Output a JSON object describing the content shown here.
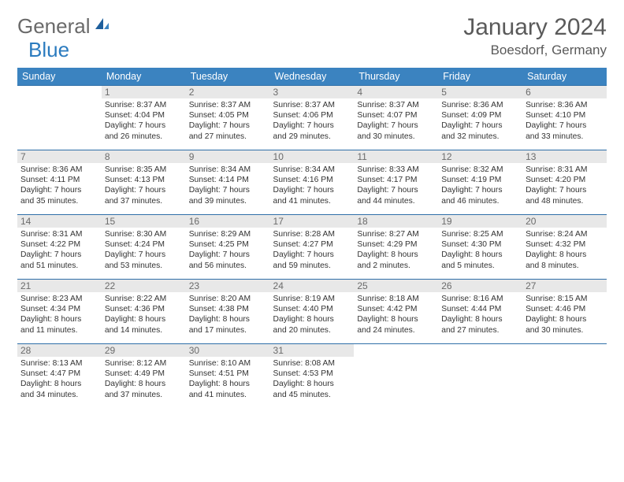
{
  "brand": {
    "part1": "General",
    "part2": "Blue"
  },
  "title": {
    "month": "January 2024",
    "location": "Boesdorf, Germany"
  },
  "colors": {
    "header_bg": "#3b83c0",
    "header_fg": "#ffffff",
    "daynum_bg": "#e8e8e8",
    "daynum_fg": "#6b6b6b",
    "row_border": "#2f6fa8",
    "text": "#333",
    "title_color": "#5a5a5a",
    "logo_gray": "#6a6a6a",
    "logo_blue": "#2b7bbf"
  },
  "layout": {
    "font_title": 30,
    "font_loc": 17,
    "font_head": 12.5,
    "font_daynum": 12,
    "font_body": 10.3
  },
  "weekdays": [
    "Sunday",
    "Monday",
    "Tuesday",
    "Wednesday",
    "Thursday",
    "Friday",
    "Saturday"
  ],
  "weeks": [
    [
      {
        "n": "",
        "l": [
          "",
          "",
          "",
          ""
        ]
      },
      {
        "n": "1",
        "l": [
          "Sunrise: 8:37 AM",
          "Sunset: 4:04 PM",
          "Daylight: 7 hours",
          "and 26 minutes."
        ]
      },
      {
        "n": "2",
        "l": [
          "Sunrise: 8:37 AM",
          "Sunset: 4:05 PM",
          "Daylight: 7 hours",
          "and 27 minutes."
        ]
      },
      {
        "n": "3",
        "l": [
          "Sunrise: 8:37 AM",
          "Sunset: 4:06 PM",
          "Daylight: 7 hours",
          "and 29 minutes."
        ]
      },
      {
        "n": "4",
        "l": [
          "Sunrise: 8:37 AM",
          "Sunset: 4:07 PM",
          "Daylight: 7 hours",
          "and 30 minutes."
        ]
      },
      {
        "n": "5",
        "l": [
          "Sunrise: 8:36 AM",
          "Sunset: 4:09 PM",
          "Daylight: 7 hours",
          "and 32 minutes."
        ]
      },
      {
        "n": "6",
        "l": [
          "Sunrise: 8:36 AM",
          "Sunset: 4:10 PM",
          "Daylight: 7 hours",
          "and 33 minutes."
        ]
      }
    ],
    [
      {
        "n": "7",
        "l": [
          "Sunrise: 8:36 AM",
          "Sunset: 4:11 PM",
          "Daylight: 7 hours",
          "and 35 minutes."
        ]
      },
      {
        "n": "8",
        "l": [
          "Sunrise: 8:35 AM",
          "Sunset: 4:13 PM",
          "Daylight: 7 hours",
          "and 37 minutes."
        ]
      },
      {
        "n": "9",
        "l": [
          "Sunrise: 8:34 AM",
          "Sunset: 4:14 PM",
          "Daylight: 7 hours",
          "and 39 minutes."
        ]
      },
      {
        "n": "10",
        "l": [
          "Sunrise: 8:34 AM",
          "Sunset: 4:16 PM",
          "Daylight: 7 hours",
          "and 41 minutes."
        ]
      },
      {
        "n": "11",
        "l": [
          "Sunrise: 8:33 AM",
          "Sunset: 4:17 PM",
          "Daylight: 7 hours",
          "and 44 minutes."
        ]
      },
      {
        "n": "12",
        "l": [
          "Sunrise: 8:32 AM",
          "Sunset: 4:19 PM",
          "Daylight: 7 hours",
          "and 46 minutes."
        ]
      },
      {
        "n": "13",
        "l": [
          "Sunrise: 8:31 AM",
          "Sunset: 4:20 PM",
          "Daylight: 7 hours",
          "and 48 minutes."
        ]
      }
    ],
    [
      {
        "n": "14",
        "l": [
          "Sunrise: 8:31 AM",
          "Sunset: 4:22 PM",
          "Daylight: 7 hours",
          "and 51 minutes."
        ]
      },
      {
        "n": "15",
        "l": [
          "Sunrise: 8:30 AM",
          "Sunset: 4:24 PM",
          "Daylight: 7 hours",
          "and 53 minutes."
        ]
      },
      {
        "n": "16",
        "l": [
          "Sunrise: 8:29 AM",
          "Sunset: 4:25 PM",
          "Daylight: 7 hours",
          "and 56 minutes."
        ]
      },
      {
        "n": "17",
        "l": [
          "Sunrise: 8:28 AM",
          "Sunset: 4:27 PM",
          "Daylight: 7 hours",
          "and 59 minutes."
        ]
      },
      {
        "n": "18",
        "l": [
          "Sunrise: 8:27 AM",
          "Sunset: 4:29 PM",
          "Daylight: 8 hours",
          "and 2 minutes."
        ]
      },
      {
        "n": "19",
        "l": [
          "Sunrise: 8:25 AM",
          "Sunset: 4:30 PM",
          "Daylight: 8 hours",
          "and 5 minutes."
        ]
      },
      {
        "n": "20",
        "l": [
          "Sunrise: 8:24 AM",
          "Sunset: 4:32 PM",
          "Daylight: 8 hours",
          "and 8 minutes."
        ]
      }
    ],
    [
      {
        "n": "21",
        "l": [
          "Sunrise: 8:23 AM",
          "Sunset: 4:34 PM",
          "Daylight: 8 hours",
          "and 11 minutes."
        ]
      },
      {
        "n": "22",
        "l": [
          "Sunrise: 8:22 AM",
          "Sunset: 4:36 PM",
          "Daylight: 8 hours",
          "and 14 minutes."
        ]
      },
      {
        "n": "23",
        "l": [
          "Sunrise: 8:20 AM",
          "Sunset: 4:38 PM",
          "Daylight: 8 hours",
          "and 17 minutes."
        ]
      },
      {
        "n": "24",
        "l": [
          "Sunrise: 8:19 AM",
          "Sunset: 4:40 PM",
          "Daylight: 8 hours",
          "and 20 minutes."
        ]
      },
      {
        "n": "25",
        "l": [
          "Sunrise: 8:18 AM",
          "Sunset: 4:42 PM",
          "Daylight: 8 hours",
          "and 24 minutes."
        ]
      },
      {
        "n": "26",
        "l": [
          "Sunrise: 8:16 AM",
          "Sunset: 4:44 PM",
          "Daylight: 8 hours",
          "and 27 minutes."
        ]
      },
      {
        "n": "27",
        "l": [
          "Sunrise: 8:15 AM",
          "Sunset: 4:46 PM",
          "Daylight: 8 hours",
          "and 30 minutes."
        ]
      }
    ],
    [
      {
        "n": "28",
        "l": [
          "Sunrise: 8:13 AM",
          "Sunset: 4:47 PM",
          "Daylight: 8 hours",
          "and 34 minutes."
        ]
      },
      {
        "n": "29",
        "l": [
          "Sunrise: 8:12 AM",
          "Sunset: 4:49 PM",
          "Daylight: 8 hours",
          "and 37 minutes."
        ]
      },
      {
        "n": "30",
        "l": [
          "Sunrise: 8:10 AM",
          "Sunset: 4:51 PM",
          "Daylight: 8 hours",
          "and 41 minutes."
        ]
      },
      {
        "n": "31",
        "l": [
          "Sunrise: 8:08 AM",
          "Sunset: 4:53 PM",
          "Daylight: 8 hours",
          "and 45 minutes."
        ]
      },
      {
        "n": "",
        "l": [
          "",
          "",
          "",
          ""
        ]
      },
      {
        "n": "",
        "l": [
          "",
          "",
          "",
          ""
        ]
      },
      {
        "n": "",
        "l": [
          "",
          "",
          "",
          ""
        ]
      }
    ]
  ]
}
